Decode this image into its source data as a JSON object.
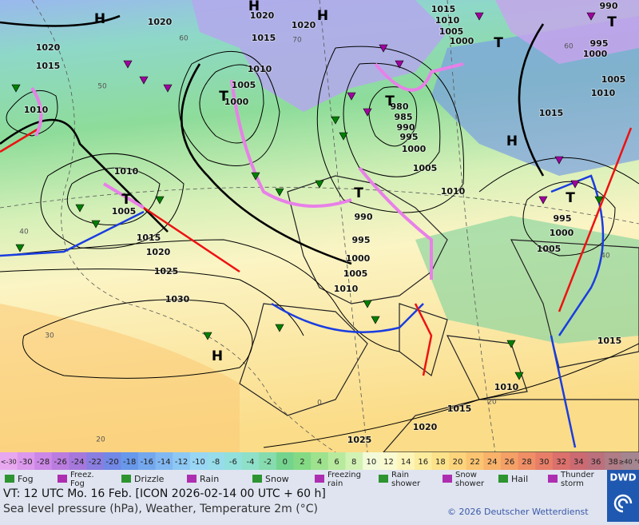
{
  "map": {
    "isobar_labels": [
      "1020",
      "1020",
      "1020",
      "1015",
      "1010",
      "1005",
      "1000",
      "990",
      "995",
      "1000",
      "1005",
      "1010",
      "1015",
      "1015",
      "1010",
      "1005",
      "1000",
      "1020",
      "1015",
      "1010",
      "1010",
      "1005",
      "1015",
      "1020",
      "1025",
      "1030",
      "980",
      "985",
      "990",
      "995",
      "1000",
      "1005",
      "1010",
      "990",
      "995",
      "1000",
      "1005",
      "1010",
      "995",
      "1000",
      "1005",
      "1015",
      "1010",
      "1015",
      "1020",
      "1025"
    ],
    "pressure_systems": [
      "H",
      "H",
      "H",
      "H",
      "H",
      "T",
      "T",
      "T",
      "T",
      "T",
      "T",
      "T"
    ],
    "temperature_labels": [
      "60",
      "70",
      "50",
      "40",
      "30",
      "20",
      "0",
      "20",
      "60",
      "40"
    ]
  },
  "scale": {
    "items": [
      {
        "label": "<-30",
        "color": "#e8a8f0"
      },
      {
        "label": "-30",
        "color": "#dc98ec"
      },
      {
        "label": "-28",
        "color": "#cc88e6"
      },
      {
        "label": "-26",
        "color": "#bb7ce0"
      },
      {
        "label": "-24",
        "color": "#a678dc"
      },
      {
        "label": "-22",
        "color": "#8a7ee0"
      },
      {
        "label": "-20",
        "color": "#7288e6"
      },
      {
        "label": "-18",
        "color": "#6898ea"
      },
      {
        "label": "-16",
        "color": "#74a8ee"
      },
      {
        "label": "-14",
        "color": "#82b8f2"
      },
      {
        "label": "-12",
        "color": "#8ec8f4"
      },
      {
        "label": "-10",
        "color": "#98d6f4"
      },
      {
        "label": "-8",
        "color": "#96dcea"
      },
      {
        "label": "-6",
        "color": "#92e0dc"
      },
      {
        "label": "-4",
        "color": "#8ee0c8"
      },
      {
        "label": "-2",
        "color": "#86dcae"
      },
      {
        "label": "0",
        "color": "#74d48e"
      },
      {
        "label": "2",
        "color": "#84da84"
      },
      {
        "label": "4",
        "color": "#9ee28e"
      },
      {
        "label": "6",
        "color": "#b8ea9e"
      },
      {
        "label": "8",
        "color": "#d2f2b4"
      },
      {
        "label": "10",
        "color": "#f2fad8"
      },
      {
        "label": "12",
        "color": "#fafad0"
      },
      {
        "label": "14",
        "color": "#fcf4b8"
      },
      {
        "label": "16",
        "color": "#fcec9e"
      },
      {
        "label": "18",
        "color": "#fce28a"
      },
      {
        "label": "20",
        "color": "#fcd47c"
      },
      {
        "label": "22",
        "color": "#fac470"
      },
      {
        "label": "24",
        "color": "#f8b26a"
      },
      {
        "label": "26",
        "color": "#f4a066"
      },
      {
        "label": "28",
        "color": "#f08e66"
      },
      {
        "label": "30",
        "color": "#e87e68"
      },
      {
        "label": "32",
        "color": "#dc706c"
      },
      {
        "label": "34",
        "color": "#cc6a72"
      },
      {
        "label": "36",
        "color": "#bc707c"
      },
      {
        "label": "38",
        "color": "#b07c86"
      },
      {
        "label": "≥40 °C",
        "color": "#a48690"
      }
    ]
  },
  "legend": [
    "Fog",
    "Freez. Fog",
    "Drizzle",
    "Rain",
    "Snow",
    "Freezing rain",
    "Rain shower",
    "Snow shower",
    "Hail",
    "Thunder storm"
  ],
  "footer": {
    "valid_time": "VT: 12 UTC Mo.   16 Feb. [ICON 2026-02-14  00 UTC + 60 h]",
    "description": "Sea level pressure (hPa), Weather, Temperature 2m (°C)",
    "copyright": "© 2026 Deutscher Wetterdienst",
    "logo": "DWD"
  }
}
